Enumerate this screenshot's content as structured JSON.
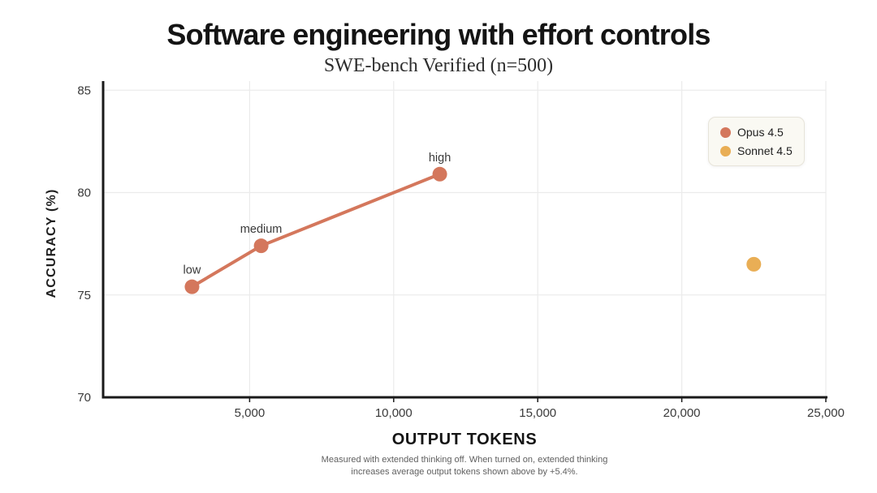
{
  "header": {
    "title": "Software engineering with effort controls",
    "subtitle": "SWE-bench Verified (n=500)"
  },
  "chart_data": {
    "type": "line",
    "title": "Software engineering with effort controls",
    "subtitle": "SWE-bench Verified (n=500)",
    "xlabel": "OUTPUT TOKENS",
    "ylabel": "ACCURACY (%)",
    "xlim": [
      0,
      25000
    ],
    "ylim": [
      70,
      85
    ],
    "x_ticks": [
      5000,
      10000,
      15000,
      20000,
      25000
    ],
    "x_tick_labels": [
      "5,000",
      "10,000",
      "15,000",
      "20,000",
      "25,000"
    ],
    "y_ticks": [
      85,
      80,
      75,
      70
    ],
    "y_tick_labels": [
      "85",
      "80",
      "75",
      "70"
    ],
    "y_gridlines": [
      75,
      80,
      85
    ],
    "grid": true,
    "legend_position": "top-right",
    "series": [
      {
        "name": "Opus 4.5",
        "color": "#D4775C",
        "line": true,
        "points": [
          {
            "label": "low",
            "x": 3000,
            "y": 75.4
          },
          {
            "label": "medium",
            "x": 5400,
            "y": 77.4
          },
          {
            "label": "high",
            "x": 11600,
            "y": 80.9
          }
        ]
      },
      {
        "name": "Sonnet 4.5",
        "color": "#E9AE55",
        "line": false,
        "points": [
          {
            "label": "",
            "x": 22500,
            "y": 76.5
          }
        ]
      }
    ],
    "style": {
      "grid_color": "#ebebeb",
      "axis_color": "#1a1a1a",
      "tick_color": "#3a3a3a"
    }
  },
  "legend": {
    "items": [
      {
        "label": "Opus 4.5",
        "color": "#D4775C"
      },
      {
        "label": "Sonnet 4.5",
        "color": "#E9AE55"
      }
    ]
  },
  "footnote": {
    "line1": "Measured with extended thinking off. When turned on, extended thinking",
    "line2": "increases average output tokens shown above by +5.4%."
  }
}
